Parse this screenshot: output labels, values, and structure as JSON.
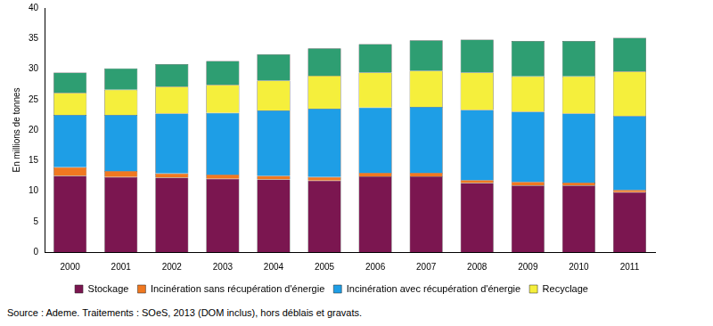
{
  "chart_data": {
    "type": "bar",
    "stacked": true,
    "y_label": "En millions de tonnes",
    "source": "Source : Ademe. Traitements : SOeS, 2013 (DOM inclus), hors déblais et gravats.",
    "categories": [
      "2000",
      "2001",
      "2002",
      "2003",
      "2004",
      "2005",
      "2006",
      "2007",
      "2008",
      "2009",
      "2010",
      "2011"
    ],
    "series": [
      {
        "name": "Stockage",
        "color": "#7b1650",
        "values": [
          12.5,
          12.3,
          12.2,
          12.0,
          11.9,
          11.7,
          12.4,
          12.4,
          11.3,
          10.9,
          10.9,
          9.8
        ]
      },
      {
        "name": "Incinération sans récupération d'énergie",
        "color": "#f07820",
        "values": [
          1.4,
          1.0,
          0.7,
          0.7,
          0.6,
          0.6,
          0.6,
          0.6,
          0.5,
          0.6,
          0.5,
          0.4
        ]
      },
      {
        "name": "Incinération avec récupération d'énergie",
        "color": "#1e9ee6",
        "values": [
          8.6,
          9.2,
          9.8,
          10.1,
          10.7,
          11.2,
          10.7,
          10.8,
          11.5,
          11.5,
          11.3,
          12.1
        ]
      },
      {
        "name": "Recyclage",
        "color": "#f5ef3c",
        "values": [
          3.6,
          4.1,
          4.4,
          4.6,
          4.9,
          5.4,
          5.7,
          5.9,
          6.1,
          5.8,
          6.1,
          7.3
        ]
      },
      {
        "name": null,
        "color": "#2e9e72",
        "values": [
          3.3,
          3.5,
          3.7,
          3.9,
          4.3,
          4.5,
          4.7,
          5.0,
          5.4,
          5.8,
          5.8,
          5.5
        ]
      }
    ],
    "ylim": [
      0,
      40
    ],
    "yticks": [
      0,
      5,
      10,
      15,
      20,
      25,
      30,
      35,
      40
    ],
    "grid": false,
    "legend": "bottom"
  }
}
